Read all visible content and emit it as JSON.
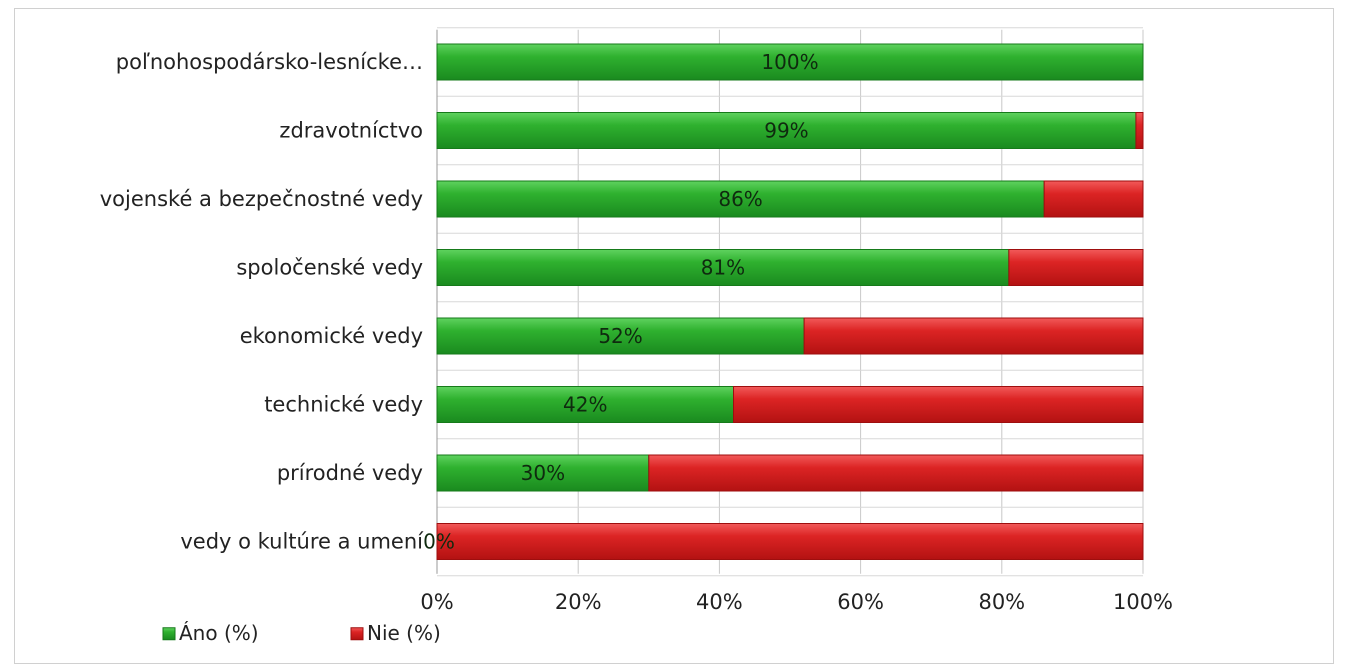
{
  "chart_data": {
    "type": "bar",
    "orientation": "horizontal",
    "stacked": "percent",
    "categories": [
      "poľnohospodársko-lesnícke…",
      "zdravotníctvo",
      "vojenské a bezpečnostné vedy",
      "spoločenské vedy",
      "ekonomické vedy",
      "technické vedy",
      "prírodné vedy",
      "vedy o kultúre a umení"
    ],
    "series": [
      {
        "name": "Áno (%)",
        "values": [
          100,
          99,
          86,
          81,
          52,
          42,
          30,
          0
        ],
        "color": "#22a22a"
      },
      {
        "name": "Nie (%)",
        "values": [
          0,
          1,
          14,
          19,
          48,
          58,
          70,
          100
        ],
        "color": "#d61f1f"
      }
    ],
    "data_labels": [
      "100%",
      "99%",
      "86%",
      "81%",
      "52%",
      "42%",
      "30%",
      "0%"
    ],
    "x_ticks": [
      "0%",
      "20%",
      "40%",
      "60%",
      "80%",
      "100%"
    ],
    "xlim": [
      0,
      100
    ],
    "grid": true,
    "legend_position": "bottom-left"
  }
}
